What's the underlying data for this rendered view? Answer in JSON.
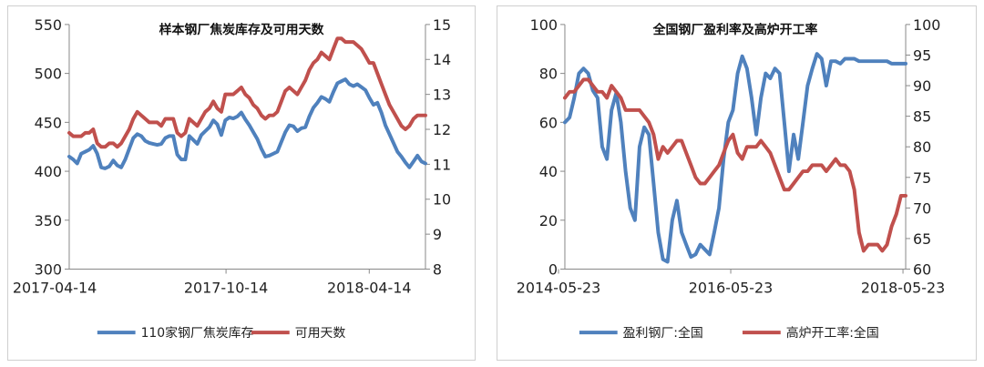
{
  "chart_data": [
    {
      "type": "line",
      "title": "样本钢厂焦炭库存及可用天数",
      "x_tick_labels": [
        "2017-04-14",
        "2017-10-14",
        "2018-04-14"
      ],
      "y_left": {
        "min": 300,
        "max": 550,
        "ticks": [
          300,
          350,
          400,
          450,
          500,
          550
        ]
      },
      "y_right": {
        "min": 8,
        "max": 15,
        "ticks": [
          8,
          9,
          10,
          11,
          12,
          13,
          14,
          15
        ]
      },
      "legend_position": "bottom",
      "colors": {
        "series1": "#4f81bd",
        "series2": "#c0504d"
      },
      "series": [
        {
          "name": "110家钢厂焦炭库存",
          "axis": "left",
          "values": [
            415,
            412,
            408,
            418,
            420,
            422,
            426,
            418,
            404,
            403,
            405,
            411,
            406,
            404,
            412,
            423,
            434,
            438,
            436,
            431,
            429,
            428,
            427,
            428,
            434,
            436,
            436,
            417,
            412,
            412,
            436,
            432,
            428,
            437,
            441,
            445,
            452,
            448,
            437,
            452,
            455,
            454,
            456,
            460,
            453,
            447,
            440,
            433,
            423,
            415,
            416,
            418,
            420,
            430,
            440,
            447,
            446,
            441,
            444,
            445,
            456,
            465,
            470,
            476,
            474,
            471,
            481,
            490,
            492,
            494,
            489,
            487,
            489,
            486,
            483,
            475,
            468,
            470,
            460,
            447,
            438,
            429,
            420,
            415,
            409,
            404,
            410,
            416,
            410,
            408
          ]
        },
        {
          "name": "可用天数",
          "axis": "right",
          "values": [
            11.9,
            11.8,
            11.8,
            11.8,
            11.9,
            11.9,
            12.0,
            11.6,
            11.5,
            11.5,
            11.6,
            11.6,
            11.5,
            11.6,
            11.8,
            12.0,
            12.3,
            12.5,
            12.4,
            12.3,
            12.2,
            12.2,
            12.2,
            12.1,
            12.3,
            12.3,
            12.3,
            11.9,
            11.8,
            11.9,
            12.3,
            12.2,
            12.1,
            12.3,
            12.5,
            12.6,
            12.8,
            12.6,
            12.5,
            13.0,
            13.0,
            13.0,
            13.1,
            13.2,
            13.0,
            12.9,
            12.7,
            12.6,
            12.4,
            12.3,
            12.4,
            12.4,
            12.5,
            12.8,
            13.1,
            13.2,
            13.1,
            13.0,
            13.2,
            13.4,
            13.7,
            13.9,
            14.0,
            14.2,
            14.1,
            14.0,
            14.3,
            14.6,
            14.6,
            14.5,
            14.5,
            14.5,
            14.4,
            14.3,
            14.1,
            13.9,
            13.9,
            13.6,
            13.3,
            13.0,
            12.7,
            12.5,
            12.3,
            12.1,
            12.0,
            12.1,
            12.3,
            12.4,
            12.4,
            12.4
          ]
        }
      ]
    },
    {
      "type": "line",
      "title": "全国钢厂盈利率及高炉开工率",
      "x_tick_labels": [
        "2014-05-23",
        "2016-05-23",
        "2018-05-23"
      ],
      "y_left": {
        "min": 0,
        "max": 100,
        "ticks": [
          0,
          20,
          40,
          60,
          80,
          100
        ]
      },
      "y_right": {
        "min": 60,
        "max": 100,
        "ticks": [
          60,
          65,
          70,
          75,
          80,
          85,
          90,
          95,
          100
        ]
      },
      "legend_position": "bottom",
      "colors": {
        "series1": "#4f81bd",
        "series2": "#c0504d"
      },
      "series": [
        {
          "name": "盈利钢厂:全国",
          "axis": "left",
          "values": [
            60,
            62,
            70,
            80,
            82,
            80,
            73,
            70,
            50,
            45,
            65,
            72,
            60,
            40,
            25,
            20,
            50,
            58,
            55,
            35,
            15,
            4,
            3,
            20,
            28,
            15,
            10,
            5,
            6,
            10,
            8,
            6,
            15,
            25,
            45,
            60,
            65,
            80,
            87,
            82,
            70,
            55,
            70,
            80,
            78,
            82,
            80,
            60,
            40,
            55,
            45,
            60,
            75,
            82,
            88,
            86,
            75,
            85,
            85,
            84,
            86,
            86,
            86,
            85,
            85,
            85,
            85,
            85,
            85,
            85,
            84,
            84,
            84,
            84
          ]
        },
        {
          "name": "高炉开工率:全国",
          "axis": "right",
          "values": [
            88,
            89,
            89,
            90,
            91,
            91,
            90,
            89,
            89,
            88,
            90,
            89,
            88,
            86,
            86,
            86,
            86,
            85,
            84,
            82,
            78,
            80,
            79,
            80,
            81,
            81,
            79,
            77,
            75,
            74,
            74,
            75,
            76,
            77,
            79,
            81,
            82,
            79,
            78,
            80,
            80,
            80,
            81,
            80,
            79,
            77,
            75,
            73,
            73,
            74,
            75,
            76,
            76,
            77,
            77,
            77,
            76,
            77,
            78,
            77,
            77,
            76,
            73,
            66,
            63,
            64,
            64,
            64,
            63,
            64,
            67,
            69,
            72,
            72
          ]
        }
      ]
    }
  ]
}
